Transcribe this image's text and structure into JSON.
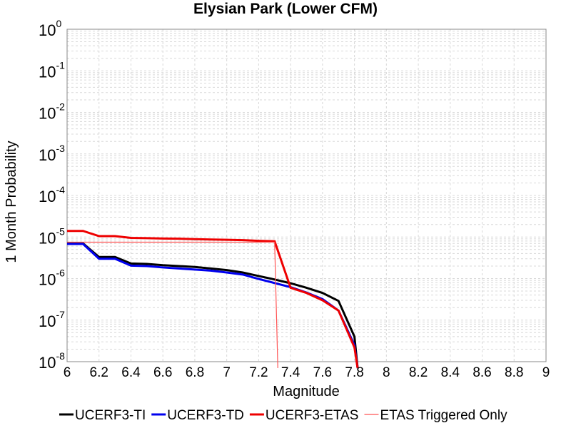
{
  "chart_data": {
    "type": "line",
    "title": "Elysian Park (Lower CFM)",
    "xlabel": "Magnitude",
    "ylabel": "1 Month Probability",
    "xlim": [
      6,
      9
    ],
    "ylim": [
      1e-08,
      1
    ],
    "yscale": "log",
    "grid": true,
    "legend_position": "bottom",
    "x_ticks": [
      "6",
      "6.2",
      "6.4",
      "6.6",
      "6.8",
      "7",
      "7.2",
      "7.4",
      "7.6",
      "7.8",
      "8",
      "8.2",
      "8.4",
      "8.6",
      "8.8",
      "9"
    ],
    "y_ticks": [
      {
        "base": "10",
        "exp": "0"
      },
      {
        "base": "10",
        "exp": "-1"
      },
      {
        "base": "10",
        "exp": "-2"
      },
      {
        "base": "10",
        "exp": "-3"
      },
      {
        "base": "10",
        "exp": "-4"
      },
      {
        "base": "10",
        "exp": "-5"
      },
      {
        "base": "10",
        "exp": "-6"
      },
      {
        "base": "10",
        "exp": "-7"
      },
      {
        "base": "10",
        "exp": "-8"
      }
    ],
    "series": [
      {
        "name": "UCERF3-TI",
        "color": "#000000",
        "stroke": "thick",
        "x": [
          6.0,
          6.1,
          6.2,
          6.3,
          6.4,
          6.5,
          6.6,
          6.7,
          6.8,
          6.9,
          7.0,
          7.1,
          7.2,
          7.3,
          7.4,
          7.5,
          7.6,
          7.7,
          7.8,
          7.82
        ],
        "y": [
          7e-06,
          7e-06,
          3.3e-06,
          3.3e-06,
          2.3e-06,
          2.25e-06,
          2.1e-06,
          2e-06,
          1.9e-06,
          1.75e-06,
          1.6e-06,
          1.4e-06,
          1.15e-06,
          9.5e-07,
          7.7e-07,
          6e-07,
          4.5e-07,
          2.9e-07,
          4e-08,
          7e-09
        ]
      },
      {
        "name": "UCERF3-TD",
        "color": "#0000ee",
        "stroke": "thick",
        "x": [
          6.0,
          6.1,
          6.2,
          6.3,
          6.4,
          6.5,
          6.6,
          6.7,
          6.8,
          6.9,
          7.0,
          7.1,
          7.2,
          7.3,
          7.4,
          7.5,
          7.6,
          7.7,
          7.8,
          7.82
        ],
        "y": [
          6.8e-06,
          6.8e-06,
          3e-06,
          3e-06,
          2.05e-06,
          2e-06,
          1.85e-06,
          1.75e-06,
          1.65e-06,
          1.55e-06,
          1.4e-06,
          1.25e-06,
          9.8e-07,
          7.8e-07,
          6.2e-07,
          4.6e-07,
          3.2e-07,
          1.7e-07,
          2.5e-08,
          7e-09
        ]
      },
      {
        "name": "UCERF3-ETAS",
        "color": "#ee0000",
        "stroke": "thick",
        "x": [
          6.0,
          6.1,
          6.2,
          6.3,
          6.4,
          6.5,
          6.6,
          6.7,
          6.8,
          6.9,
          7.0,
          7.1,
          7.2,
          7.3,
          7.4,
          7.5,
          7.6,
          7.7,
          7.8,
          7.82
        ],
        "y": [
          1.4e-05,
          1.4e-05,
          1.05e-05,
          1.05e-05,
          9.5e-06,
          9.4e-06,
          9.2e-06,
          9.1e-06,
          8.9e-06,
          8.7e-06,
          8.6e-06,
          8.4e-06,
          8.1e-06,
          7.9e-06,
          6e-07,
          4.5e-07,
          3e-07,
          1.7e-07,
          2.2e-08,
          7e-09
        ]
      },
      {
        "name": "ETAS Triggered Only",
        "color": "#ff5555",
        "stroke": "thin",
        "x": [
          6.0,
          6.1,
          6.2,
          6.3,
          6.4,
          6.5,
          6.6,
          6.7,
          6.8,
          6.9,
          7.0,
          7.1,
          7.2,
          7.3,
          7.32
        ],
        "y": [
          7.5e-06,
          7.5e-06,
          7.5e-06,
          7.5e-06,
          7.5e-06,
          7.5e-06,
          7.5e-06,
          7.5e-06,
          7.5e-06,
          7.5e-06,
          7.5e-06,
          7.5e-06,
          7.5e-06,
          7.5e-06,
          7e-09
        ]
      }
    ]
  }
}
